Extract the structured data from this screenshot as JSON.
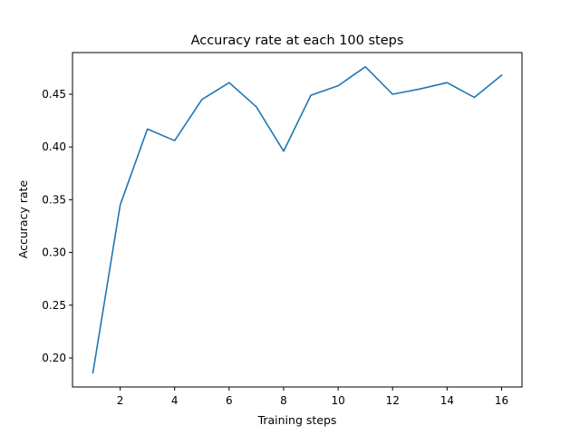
{
  "chart_data": {
    "type": "line",
    "title": "Accuracy rate at each 100 steps",
    "xlabel": "Training steps",
    "ylabel": "Accuracy rate",
    "xlim": [
      0.25,
      16.75
    ],
    "ylim": [
      0.1725,
      0.4895
    ],
    "xticks": [
      2,
      4,
      6,
      8,
      10,
      12,
      14,
      16
    ],
    "xtick_labels": [
      "2",
      "4",
      "6",
      "8",
      "10",
      "12",
      "14",
      "16"
    ],
    "yticks": [
      0.2,
      0.25,
      0.3,
      0.35,
      0.4,
      0.45
    ],
    "ytick_labels": [
      "0.20",
      "0.25",
      "0.30",
      "0.35",
      "0.40",
      "0.45"
    ],
    "grid": false,
    "colors": {
      "line": "#1f77b4"
    },
    "series": [
      {
        "x": [
          1,
          2,
          3,
          4,
          5,
          6,
          7,
          8,
          9,
          10,
          11,
          12,
          13,
          14,
          15,
          16
        ],
        "values": [
          0.186,
          0.345,
          0.417,
          0.406,
          0.445,
          0.461,
          0.438,
          0.396,
          0.449,
          0.458,
          0.476,
          0.45,
          0.455,
          0.461,
          0.447,
          0.468
        ]
      }
    ]
  }
}
